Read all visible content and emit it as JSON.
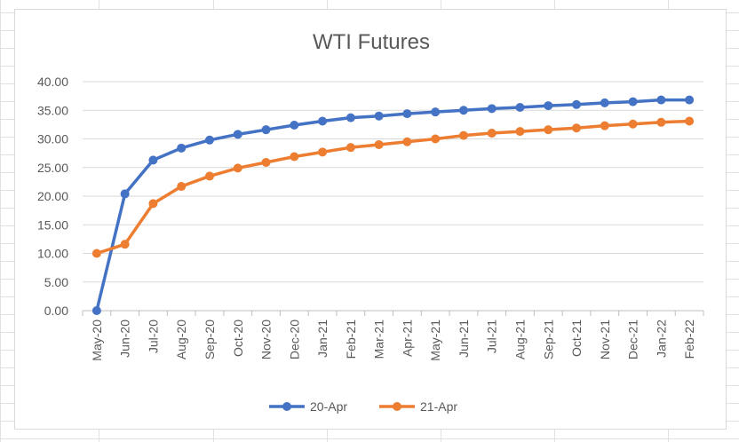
{
  "chart_data": {
    "type": "line",
    "title": "WTI Futures",
    "xlabel": "",
    "ylabel": "",
    "categories": [
      "May-20",
      "Jun-20",
      "Jul-20",
      "Aug-20",
      "Sep-20",
      "Oct-20",
      "Nov-20",
      "Dec-20",
      "Jan-21",
      "Feb-21",
      "Mar-21",
      "Apr-21",
      "May-21",
      "Jun-21",
      "Jul-21",
      "Aug-21",
      "Sep-21",
      "Oct-21",
      "Nov-21",
      "Dec-21",
      "Jan-22",
      "Feb-22"
    ],
    "yticks": [
      "0.00",
      "5.00",
      "10.00",
      "15.00",
      "20.00",
      "25.00",
      "30.00",
      "35.00",
      "40.00"
    ],
    "ylim": [
      0,
      40
    ],
    "grid": "horizontal",
    "legend_position": "bottom",
    "series": [
      {
        "name": "20-Apr",
        "color": "#4472c4",
        "values": [
          0.0,
          20.4,
          26.3,
          28.4,
          29.8,
          30.8,
          31.6,
          32.4,
          33.1,
          33.7,
          34.0,
          34.4,
          34.7,
          35.0,
          35.3,
          35.5,
          35.8,
          36.0,
          36.3,
          36.5,
          36.8,
          36.8
        ]
      },
      {
        "name": "21-Apr",
        "color": "#ed7d31",
        "values": [
          10.0,
          11.6,
          18.7,
          21.7,
          23.5,
          24.9,
          25.9,
          26.9,
          27.7,
          28.5,
          29.0,
          29.5,
          30.0,
          30.6,
          31.0,
          31.3,
          31.6,
          31.9,
          32.3,
          32.6,
          32.9,
          33.1
        ]
      }
    ]
  }
}
